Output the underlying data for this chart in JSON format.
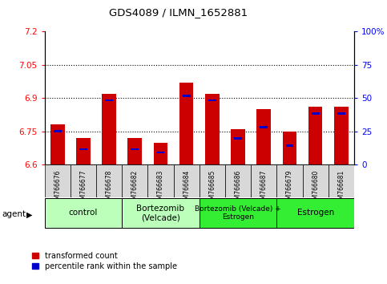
{
  "title": "GDS4089 / ILMN_1652881",
  "samples": [
    "GSM766676",
    "GSM766677",
    "GSM766678",
    "GSM766682",
    "GSM766683",
    "GSM766684",
    "GSM766685",
    "GSM766686",
    "GSM766687",
    "GSM766679",
    "GSM766680",
    "GSM766681"
  ],
  "red_values": [
    6.78,
    6.72,
    6.92,
    6.72,
    6.7,
    6.97,
    6.92,
    6.76,
    6.85,
    6.75,
    6.86,
    6.86
  ],
  "blue_tops": [
    6.745,
    6.665,
    6.885,
    6.665,
    6.65,
    6.905,
    6.885,
    6.712,
    6.765,
    6.682,
    6.825,
    6.825
  ],
  "blue_heights": [
    0.01,
    0.01,
    0.01,
    0.01,
    0.01,
    0.01,
    0.01,
    0.01,
    0.01,
    0.01,
    0.01,
    0.01
  ],
  "ymin": 6.6,
  "ymax": 7.2,
  "yticks_left": [
    6.6,
    6.75,
    6.9,
    7.05,
    7.2
  ],
  "yticks_right_pct": [
    0,
    25,
    50,
    75,
    100
  ],
  "dotted_lines": [
    6.75,
    6.9,
    7.05
  ],
  "groups": [
    {
      "label": "control",
      "span": [
        0,
        2
      ],
      "color": "#bbffbb"
    },
    {
      "label": "Bortezomib\n(Velcade)",
      "span": [
        3,
        5
      ],
      "color": "#bbffbb"
    },
    {
      "label": "Bortezomib (Velcade) +\nEstrogen",
      "span": [
        6,
        8
      ],
      "color": "#33ee33"
    },
    {
      "label": "Estrogen",
      "span": [
        9,
        11
      ],
      "color": "#33ee33"
    }
  ],
  "bar_width": 0.55,
  "red_color": "#cc0000",
  "blue_color": "#0000cc",
  "bg_gray": "#d8d8d8",
  "legend_items": [
    "transformed count",
    "percentile rank within the sample"
  ],
  "agent_label": "agent"
}
